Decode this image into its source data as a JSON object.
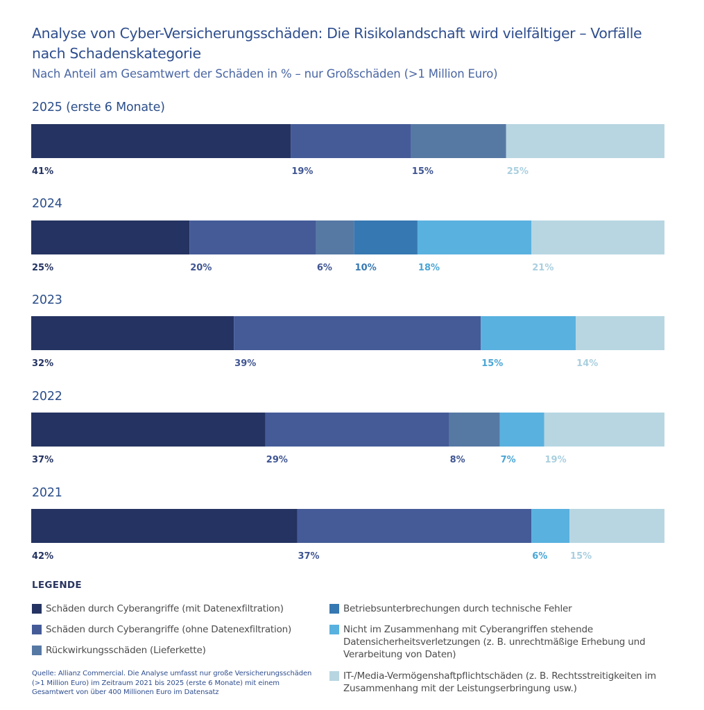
{
  "title": "Analyse von Cyber-Versicherungsschäden: Die Risikolandschaft wird vielfältiger – Vorfälle nach Schadenskategorie",
  "subtitle": "Nach Anteil am Gesamtwert der Schäden in % – nur Großschäden (>1 Million Euro)",
  "chart_data": {
    "type": "bar",
    "orientation": "horizontal",
    "stacked": true,
    "title": "Analyse von Cyber-Versicherungsschäden: Die Risikolandschaft wird vielfältiger – Vorfälle nach Schadenskategorie",
    "subtitle": "Nach Anteil am Gesamtwert der Schäden in % – nur Großschäden (>1 Million Euro)",
    "unit": "%",
    "xlim": [
      0,
      100
    ],
    "xlabel": "",
    "ylabel": "",
    "grid": false,
    "legend_position": "bottom",
    "categories": [
      "2025 (erste 6 Monate)",
      "2024",
      "2023",
      "2022",
      "2021"
    ],
    "series": [
      {
        "name": "Schäden durch Cyberangriffe (mit Datenexfiltration)",
        "color": "#243361",
        "values": [
          41,
          25,
          32,
          37,
          42
        ]
      },
      {
        "name": "Schäden durch Cyberangriffe (ohne Datenexfiltration)",
        "color": "#445b98",
        "values": [
          19,
          20,
          39,
          29,
          37
        ]
      },
      {
        "name": "Rückwirkungsschäden (Lieferkette)",
        "color": "#5679a4",
        "values": [
          15,
          6,
          0,
          8,
          0
        ]
      },
      {
        "name": "Betriebsunterbrechungen durch technische Fehler",
        "color": "#3678b2",
        "values": [
          0,
          10,
          0,
          0,
          0
        ]
      },
      {
        "name": "Nicht im Zusammenhang mit Cyberangriffen stehende Datensicherheitsverletzungen (z. B. unrechtmäßige Erhebung und Verarbeitung von Daten)",
        "color": "#59b1df",
        "values": [
          0,
          18,
          15,
          7,
          6
        ]
      },
      {
        "name": "IT-/Media-Vermögenshaftpflichtschäden (z. B. Rechtsstreitigkeiten im Zusammenhang mit der Leistungserbringung usw.)",
        "color": "#b7d6e2",
        "values": [
          25,
          21,
          14,
          19,
          15
        ]
      }
    ],
    "label_colors": [
      "#243361",
      "#3f5592",
      "#3f5592",
      "#3678b2",
      "#4aa6d6",
      "#a9cfdf"
    ]
  },
  "legend": {
    "title": "LEGENDE",
    "items": [
      "Schäden durch Cyberangriffe (mit Datenexfiltration)",
      "Schäden durch Cyberangriffe (ohne Datenexfiltration)",
      "Rückwirkungsschäden (Lieferkette)",
      "Betriebsunterbrechungen durch technische Fehler",
      "Nicht im Zusammenhang mit Cyberangriffen stehende Datensicherheitsverletzungen (z. B. unrechtmäßige Erhebung und Verarbeitung von Daten)",
      "IT-/Media-Vermögenshaftpflichtschäden (z. B. Rechtsstreitigkeiten im Zusammenhang mit der Leistungserbringung usw.)"
    ]
  },
  "source": "Quelle: Allianz Commercial. Die Analyse umfasst nur große Versicherungsschäden (>1 Million Euro) im Zeitraum 2021 bis 2025 (erste 6 Monate) mit einem Gesamtwert von über 400 Millionen Euro im Datensatz"
}
